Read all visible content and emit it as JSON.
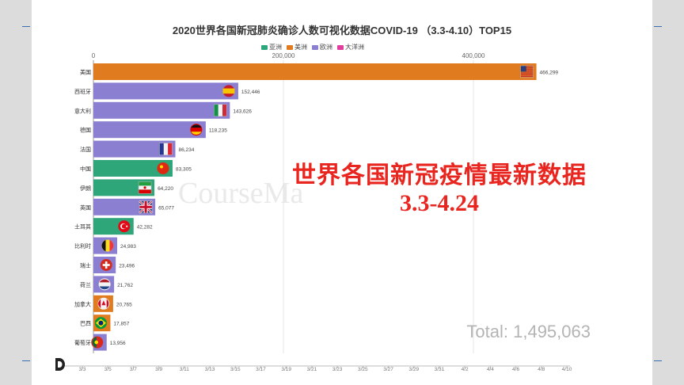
{
  "title": "2020世界各国新冠肺炎确诊人数可视化数据COVID-19 （3.3-4.10）TOP15",
  "legend": [
    {
      "label": "亚洲",
      "color": "#2fa57a"
    },
    {
      "label": "美洲",
      "color": "#e07b20"
    },
    {
      "label": "欧洲",
      "color": "#8a7fd0"
    },
    {
      "label": "大洋洲",
      "color": "#e23c9e"
    }
  ],
  "overlay": {
    "headline": "世界各国新冠疫情最新数据",
    "dates": "3.3-4.24"
  },
  "watermark": "CourseMa",
  "total": "Total: 1,495,063",
  "chart_data": {
    "type": "bar",
    "orientation": "horizontal",
    "xlim": [
      0,
      500000
    ],
    "x_ticks": [
      0,
      200000,
      400000
    ],
    "x_tick_labels": [
      "0",
      "200,000",
      "400,000"
    ],
    "categories": [
      "美国",
      "西班牙",
      "意大利",
      "德国",
      "法国",
      "中国",
      "伊朗",
      "英国",
      "土耳其",
      "比利时",
      "瑞士",
      "荷兰",
      "加拿大",
      "巴西",
      "葡萄牙"
    ],
    "values": [
      466299,
      152446,
      143626,
      118235,
      86234,
      83305,
      64220,
      65077,
      42282,
      24983,
      23496,
      21762,
      20765,
      17857,
      13956
    ],
    "value_labels": [
      "466,299",
      "152,446",
      "143,626",
      "118,235",
      "86,234",
      "83,305",
      "64,220",
      "65,077",
      "42,282",
      "24,983",
      "23,496",
      "21,762",
      "20,765",
      "17,857",
      "13,956"
    ],
    "continents": [
      "美洲",
      "欧洲",
      "欧洲",
      "欧洲",
      "欧洲",
      "亚洲",
      "亚洲",
      "欧洲",
      "亚洲",
      "欧洲",
      "欧洲",
      "欧洲",
      "美洲",
      "美洲",
      "欧洲"
    ],
    "flags": [
      "us-flag",
      "spain-flag",
      "italy-flag",
      "germany-flag",
      "france-flag",
      "china-flag",
      "iran-flag",
      "uk-flag",
      "turkey-flag",
      "belgium-flag",
      "switzerland-flag",
      "netherlands-flag",
      "canada-flag",
      "brazil-flag",
      "portugal-flag"
    ],
    "timeline_labels": [
      "3/3",
      "3/5",
      "3/7",
      "3/9",
      "3/11",
      "3/13",
      "3/15",
      "3/17",
      "3/19",
      "3/21",
      "3/23",
      "3/25",
      "3/27",
      "3/29",
      "3/31",
      "4/2",
      "4/4",
      "4/6",
      "4/8",
      "4/10"
    ],
    "timeline_current": "4/10",
    "grid": true
  }
}
